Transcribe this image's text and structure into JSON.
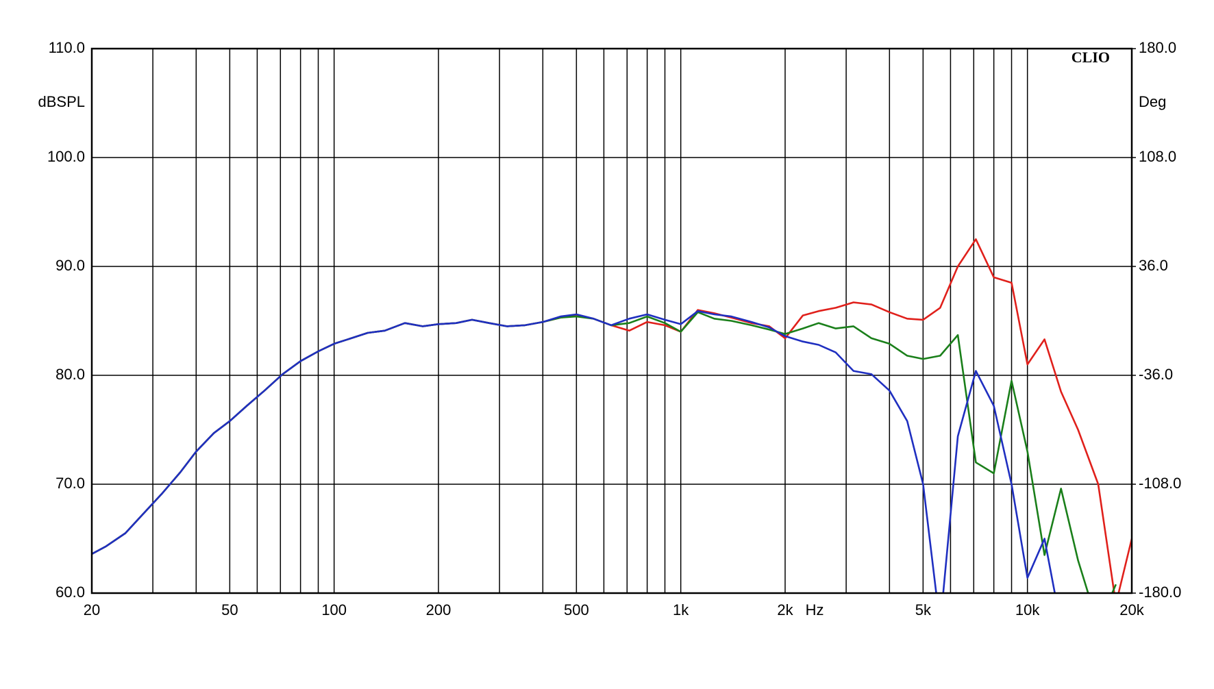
{
  "chart_data": {
    "type": "line",
    "watermark": "CLIO",
    "ylabel": "dBSPL",
    "y2label": "Deg",
    "xlabel": "Hz",
    "xscale": "log",
    "grid": true,
    "xlim": [
      20,
      20000
    ],
    "ylim": [
      60,
      110
    ],
    "y2lim": [
      -180,
      180
    ],
    "xticks": [
      20,
      50,
      100,
      200,
      500,
      {
        "value": 1000,
        "label": "1k"
      },
      {
        "value": 2000,
        "label": "2k"
      },
      {
        "value": 5000,
        "label": "5k"
      },
      {
        "value": 10000,
        "label": "10k"
      },
      {
        "value": 20000,
        "label": "20k"
      }
    ],
    "xminor": [
      30,
      40,
      60,
      70,
      80,
      90,
      300,
      400,
      600,
      700,
      800,
      900,
      3000,
      4000,
      6000,
      7000,
      8000,
      9000
    ],
    "yticks": [
      {
        "value": 60,
        "label": "60.0"
      },
      {
        "value": 70,
        "label": "70.0"
      },
      {
        "value": 80,
        "label": "80.0"
      },
      {
        "value": 90,
        "label": "90.0"
      },
      {
        "value": 100,
        "label": "100.0"
      },
      {
        "value": 110,
        "label": "110.0"
      }
    ],
    "y2ticks": [
      {
        "value": -180,
        "label": "-180.0"
      },
      {
        "value": -108,
        "label": "-108.0"
      },
      {
        "value": -36,
        "label": "-36.0"
      },
      {
        "value": 36,
        "label": "36.0"
      },
      {
        "value": 108,
        "label": "108.0"
      },
      {
        "value": 180,
        "label": "180.0"
      }
    ],
    "x": [
      20,
      22,
      25,
      28,
      32,
      36,
      40,
      45,
      50,
      56,
      63,
      71,
      80,
      90,
      100,
      112,
      125,
      140,
      160,
      180,
      200,
      225,
      250,
      280,
      315,
      355,
      400,
      450,
      500,
      560,
      630,
      710,
      800,
      900,
      1000,
      1120,
      1250,
      1400,
      1600,
      1800,
      2000,
      2250,
      2500,
      2800,
      3150,
      3550,
      4000,
      4500,
      5000,
      5600,
      6300,
      7100,
      8000,
      9000,
      10000,
      11200,
      12500,
      14000,
      16000,
      18000,
      20000
    ],
    "series": [
      {
        "color": "#e0201b",
        "values": [
          63.6,
          64.3,
          65.5,
          67.2,
          69.2,
          71.1,
          73.0,
          74.7,
          75.8,
          77.2,
          78.6,
          80.1,
          81.3,
          82.2,
          82.9,
          83.4,
          83.9,
          84.1,
          84.8,
          84.5,
          84.7,
          84.8,
          85.1,
          84.8,
          84.5,
          84.6,
          84.9,
          85.3,
          85.5,
          85.2,
          84.6,
          84.1,
          84.9,
          84.6,
          84.0,
          86.0,
          85.7,
          85.3,
          84.8,
          84.5,
          83.4,
          85.5,
          85.9,
          86.2,
          86.7,
          86.5,
          85.8,
          85.2,
          85.1,
          86.2,
          90.0,
          92.5,
          89.0,
          88.5,
          81.0,
          83.3,
          78.5,
          75.0,
          70.0,
          59.0,
          65.0
        ]
      },
      {
        "color": "#1a7f1a",
        "values": [
          63.6,
          64.3,
          65.5,
          67.2,
          69.2,
          71.1,
          73.0,
          74.7,
          75.8,
          77.2,
          78.6,
          80.1,
          81.3,
          82.2,
          82.9,
          83.4,
          83.9,
          84.1,
          84.8,
          84.5,
          84.7,
          84.8,
          85.1,
          84.8,
          84.5,
          84.6,
          84.9,
          85.3,
          85.4,
          85.2,
          84.6,
          84.8,
          85.4,
          84.8,
          84.0,
          85.8,
          85.2,
          85.0,
          84.6,
          84.2,
          83.8,
          84.3,
          84.8,
          84.3,
          84.5,
          83.4,
          82.9,
          81.8,
          81.5,
          81.8,
          83.7,
          72.0,
          71.0,
          79.5,
          73.0,
          63.5,
          69.6,
          63.0,
          57.0,
          60.8,
          null
        ]
      },
      {
        "color": "#1f2fc0",
        "values": [
          63.6,
          64.3,
          65.5,
          67.2,
          69.2,
          71.1,
          73.0,
          74.7,
          75.8,
          77.2,
          78.6,
          80.1,
          81.3,
          82.2,
          82.9,
          83.4,
          83.9,
          84.1,
          84.8,
          84.5,
          84.7,
          84.8,
          85.1,
          84.8,
          84.5,
          84.6,
          84.9,
          85.4,
          85.6,
          85.2,
          84.6,
          85.2,
          85.6,
          85.1,
          84.7,
          85.9,
          85.6,
          85.4,
          84.9,
          84.4,
          83.6,
          83.1,
          82.8,
          82.1,
          80.4,
          80.1,
          78.6,
          75.8,
          70.0,
          57.0,
          74.4,
          80.4,
          77.2,
          70.0,
          61.4,
          65.0,
          57.0,
          null,
          null,
          null,
          null
        ]
      }
    ]
  }
}
